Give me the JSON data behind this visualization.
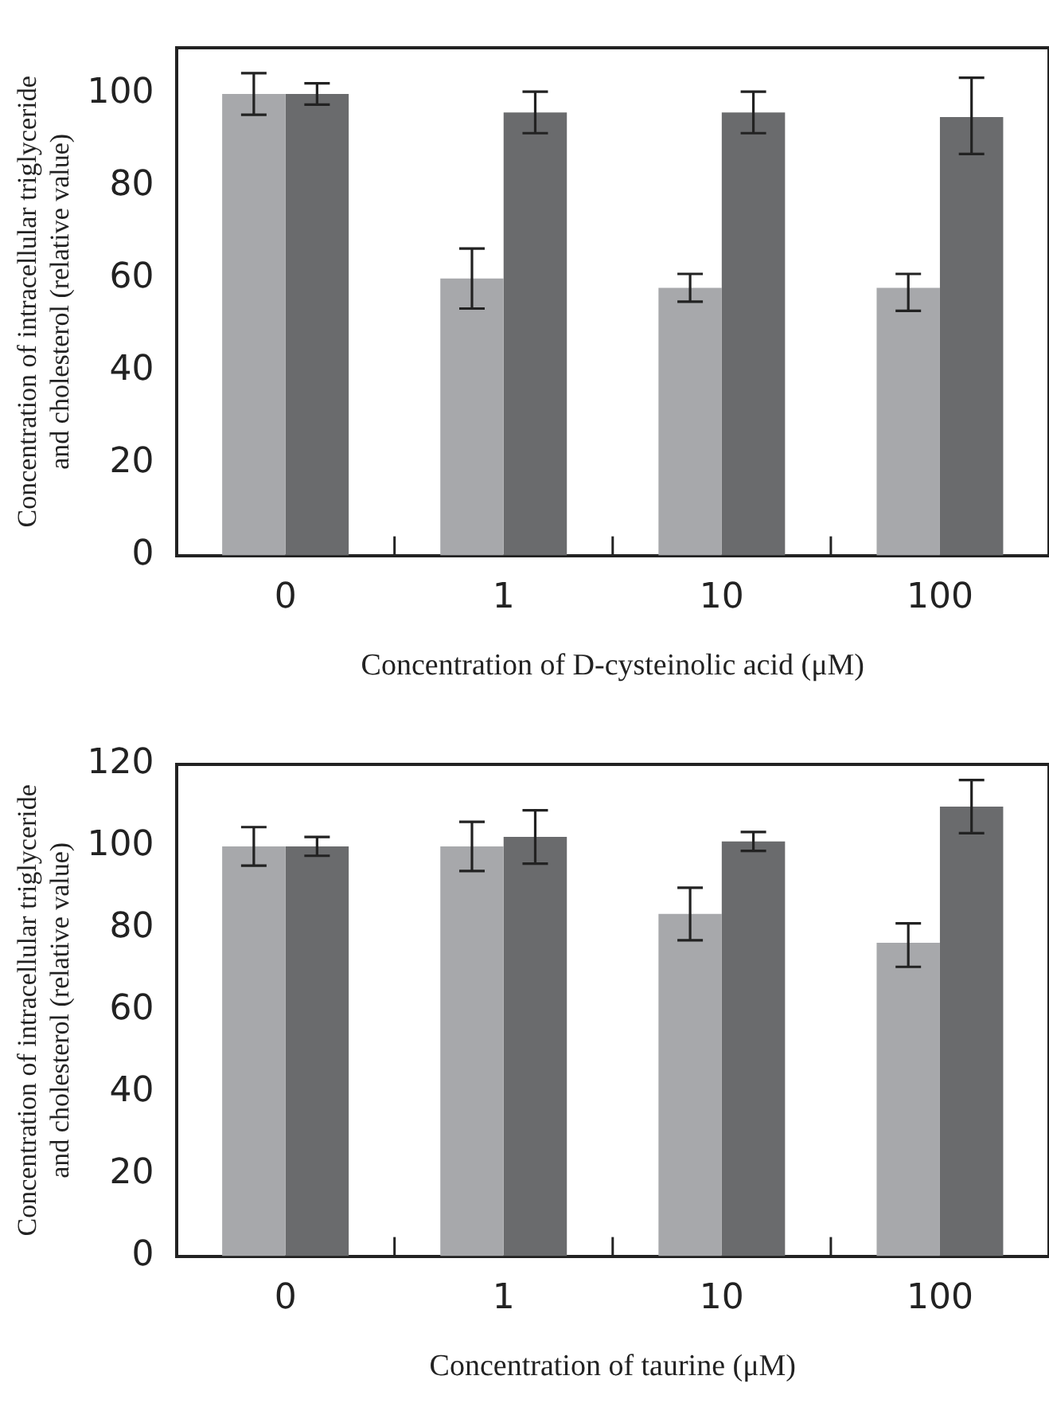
{
  "chart_data": [
    {
      "type": "bar",
      "xlabel": "Concentration of D-cysteinolic acid (μM)",
      "ylabel": "Concentration of intracellular triglyceride and cholesterol (relative value)",
      "categories": [
        "0",
        "1",
        "10",
        "100"
      ],
      "ylim": [
        0,
        110
      ],
      "yticks": [
        0,
        20,
        40,
        60,
        80,
        100
      ],
      "grid": false,
      "legend": false,
      "series": [
        {
          "color": "#a7a8ab",
          "values": [
            100,
            60,
            58,
            58
          ],
          "errors": [
            4.5,
            6.5,
            3,
            [
              53,
              61
            ]
          ]
        },
        {
          "color": "#6a6b6d",
          "values": [
            100,
            96,
            96,
            95
          ],
          "errors": [
            2.3,
            4.5,
            4.5,
            [
              87,
              103.5
            ]
          ]
        }
      ]
    },
    {
      "type": "bar",
      "xlabel": "Concentration of taurine (μM)",
      "ylabel": "Concentration of intracellular triglyceride and cholesterol (relative value)",
      "categories": [
        "0",
        "1",
        "10",
        "100"
      ],
      "ylim": [
        0,
        120
      ],
      "yticks": [
        0,
        20,
        40,
        60,
        80,
        100,
        120
      ],
      "grid": false,
      "legend": false,
      "series": [
        {
          "color": "#a7a8ab",
          "values": [
            100,
            100,
            83.5,
            76.5
          ],
          "errors": [
            4.7,
            6,
            6.4,
            [
              70.6,
              81.2
            ]
          ]
        },
        {
          "color": "#6a6b6d",
          "values": [
            100,
            102.3,
            101.2,
            109.7
          ],
          "errors": [
            2.3,
            6.5,
            2.3,
            6.5
          ]
        }
      ]
    }
  ]
}
